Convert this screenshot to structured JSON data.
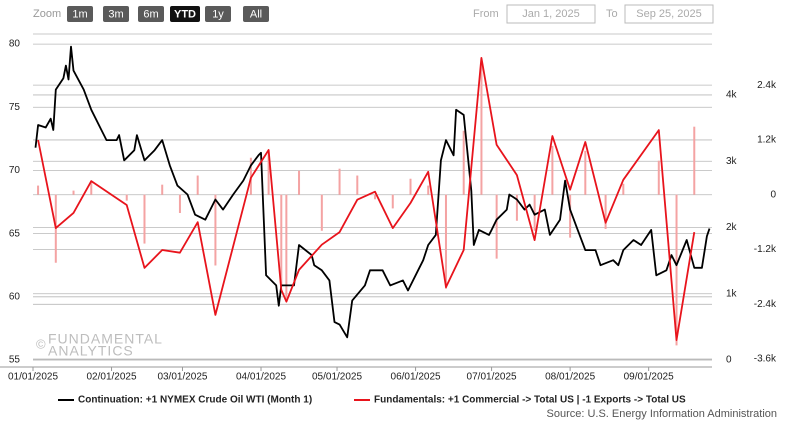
{
  "controls": {
    "zoom_label": "Zoom",
    "buttons": [
      "1m",
      "3m",
      "6m",
      "YTD",
      "1y",
      "All"
    ],
    "active_index": 3,
    "from_label": "From",
    "from": "Jan 1, 2025",
    "to_label": "To",
    "to": "Sep 25, 2025"
  },
  "watermark": {
    "symbol": "©",
    "lines": [
      "FUNDAMENTAL",
      "ANALYTICS"
    ]
  },
  "source": "Source: U.S. Energy Information Administration",
  "chart_data": {
    "type": "line",
    "grid": true,
    "legend": "bottom",
    "xlim": [
      "2025-01-01",
      "2025-09-26"
    ],
    "xticks": [
      {
        "value": "2025-01-01",
        "label": "01/01/2025"
      },
      {
        "value": "2025-02-01",
        "label": "02/01/2025"
      },
      {
        "value": "2025-03-01",
        "label": "03/01/2025"
      },
      {
        "value": "2025-04-01",
        "label": "04/01/2025"
      },
      {
        "value": "2025-05-01",
        "label": "05/01/2025"
      },
      {
        "value": "2025-06-01",
        "label": "06/01/2025"
      },
      {
        "value": "2025-07-01",
        "label": "07/01/2025"
      },
      {
        "value": "2025-08-01",
        "label": "08/01/2025"
      },
      {
        "value": "2025-09-01",
        "label": "09/01/2025"
      }
    ],
    "ylim": [
      55,
      80.8
    ],
    "yticks": [
      55,
      60,
      65,
      70,
      75,
      80
    ],
    "y2lim": [
      0,
      4920
    ],
    "y2ticks": [
      0,
      {
        "value": 1000,
        "label": "1k"
      },
      {
        "value": 2000,
        "label": "2k"
      },
      {
        "value": 3000,
        "label": "3k"
      },
      {
        "value": 4000,
        "label": "4k"
      }
    ],
    "y3lim": [
      -3620,
      3520
    ],
    "y3ticks": [
      {
        "value": -3600,
        "label": "-3.6k"
      },
      {
        "value": -2400,
        "label": "-2.4k"
      },
      {
        "value": -1200,
        "label": "-1.2k"
      },
      0,
      {
        "value": 1200,
        "label": "1.2k"
      },
      {
        "value": 2400,
        "label": "2.4k"
      }
    ],
    "series": [
      {
        "name": "Continuation: +1 NYMEX Crude Oil WTI (Month 1)",
        "color": "#000000",
        "x": [
          "2025-01-02",
          "2025-01-03",
          "2025-01-06",
          "2025-01-08",
          "2025-01-09",
          "2025-01-10",
          "2025-01-13",
          "2025-01-14",
          "2025-01-15",
          "2025-01-16",
          "2025-01-17",
          "2025-01-21",
          "2025-01-24",
          "2025-01-28",
          "2025-01-30",
          "2025-02-03",
          "2025-02-04",
          "2025-02-06",
          "2025-02-10",
          "2025-02-11",
          "2025-02-14",
          "2025-02-18",
          "2025-02-21",
          "2025-02-24",
          "2025-02-27",
          "2025-03-03",
          "2025-03-06",
          "2025-03-10",
          "2025-03-14",
          "2025-03-17",
          "2025-03-21",
          "2025-03-25",
          "2025-03-28",
          "2025-03-31",
          "2025-04-01",
          "2025-04-03",
          "2025-04-07",
          "2025-04-08",
          "2025-04-09",
          "2025-04-14",
          "2025-04-16",
          "2025-04-21",
          "2025-04-22",
          "2025-04-25",
          "2025-04-28",
          "2025-04-30",
          "2025-05-02",
          "2025-05-05",
          "2025-05-07",
          "2025-05-12",
          "2025-05-14",
          "2025-05-19",
          "2025-05-22",
          "2025-05-27",
          "2025-05-29",
          "2025-06-02",
          "2025-06-04",
          "2025-06-06",
          "2025-06-09",
          "2025-06-11",
          "2025-06-13",
          "2025-06-16",
          "2025-06-17",
          "2025-06-20",
          "2025-06-23",
          "2025-06-24",
          "2025-06-26",
          "2025-06-30",
          "2025-07-01",
          "2025-07-03",
          "2025-07-07",
          "2025-07-08",
          "2025-07-11",
          "2025-07-14",
          "2025-07-16",
          "2025-07-18",
          "2025-07-22",
          "2025-07-24",
          "2025-07-28",
          "2025-07-30",
          "2025-08-01",
          "2025-08-04",
          "2025-08-07",
          "2025-08-11",
          "2025-08-13",
          "2025-08-18",
          "2025-08-20",
          "2025-08-22",
          "2025-08-26",
          "2025-08-29",
          "2025-09-02",
          "2025-09-04",
          "2025-09-08",
          "2025-09-10",
          "2025-09-12",
          "2025-09-16",
          "2025-09-19",
          "2025-09-22",
          "2025-09-24",
          "2025-09-25"
        ],
        "values": [
          71.8,
          73.6,
          73.4,
          74.1,
          73.2,
          76.4,
          77.3,
          78.3,
          77.2,
          79.8,
          77.9,
          76.4,
          74.8,
          73.2,
          72.4,
          72.4,
          72.8,
          70.8,
          71.6,
          72.8,
          70.8,
          71.6,
          72.4,
          70.4,
          68.8,
          68.1,
          66.5,
          66.1,
          67.7,
          66.9,
          68.1,
          69.2,
          70.4,
          71.2,
          71.4,
          61.7,
          60.9,
          59.3,
          60.9,
          60.9,
          64.1,
          63.3,
          62.5,
          62.1,
          61.3,
          58.0,
          57.8,
          56.8,
          59.7,
          60.9,
          62.1,
          62.1,
          60.9,
          61.3,
          60.5,
          62.1,
          62.9,
          64.1,
          64.9,
          70.8,
          72.4,
          71.2,
          74.8,
          74.4,
          68.4,
          64.1,
          65.3,
          64.9,
          65.3,
          66.1,
          66.9,
          68.1,
          67.7,
          66.9,
          67.3,
          66.5,
          66.9,
          64.9,
          66.1,
          69.2,
          66.9,
          65.3,
          63.7,
          63.7,
          62.5,
          62.9,
          62.5,
          63.7,
          64.5,
          64.1,
          65.3,
          61.7,
          62.1,
          63.3,
          62.5,
          64.5,
          62.3,
          62.3,
          64.8,
          65.4
        ]
      },
      {
        "name": "Fundamentals: +1 Commercial -> Total US | -1 Exports -> Total US",
        "color": "#e8141c",
        "axis": "y2",
        "x": [
          "2025-01-03",
          "2025-01-10",
          "2025-01-17",
          "2025-01-24",
          "2025-02-07",
          "2025-02-14",
          "2025-02-21",
          "2025-02-28",
          "2025-03-07",
          "2025-03-14",
          "2025-03-28",
          "2025-04-04",
          "2025-04-09",
          "2025-04-11",
          "2025-04-16",
          "2025-04-25",
          "2025-05-02",
          "2025-05-09",
          "2025-05-16",
          "2025-05-23",
          "2025-05-30",
          "2025-06-06",
          "2025-06-13",
          "2025-06-20",
          "2025-06-27",
          "2025-07-03",
          "2025-07-11",
          "2025-07-18",
          "2025-07-25",
          "2025-08-01",
          "2025-08-07",
          "2025-08-15",
          "2025-08-22",
          "2025-09-05",
          "2025-09-12",
          "2025-09-19"
        ],
        "values": [
          3320,
          1990,
          2220,
          2700,
          2340,
          1390,
          1660,
          1620,
          2080,
          680,
          2750,
          3170,
          1060,
          880,
          1360,
          1740,
          1930,
          2420,
          2540,
          1990,
          2370,
          2840,
          1100,
          1660,
          4560,
          3250,
          2790,
          1810,
          3380,
          2570,
          3290,
          2070,
          2720,
          3470,
          300,
          1930
        ]
      },
      {
        "type": "bar",
        "color": "#f4a3a3",
        "axis": "y3",
        "x": [
          "2025-01-03",
          "2025-01-10",
          "2025-01-17",
          "2025-01-24",
          "2025-02-07",
          "2025-02-14",
          "2025-02-21",
          "2025-02-28",
          "2025-03-07",
          "2025-03-14",
          "2025-03-28",
          "2025-04-04",
          "2025-04-09",
          "2025-04-11",
          "2025-04-16",
          "2025-04-25",
          "2025-05-02",
          "2025-05-09",
          "2025-05-16",
          "2025-05-23",
          "2025-05-30",
          "2025-06-06",
          "2025-06-13",
          "2025-06-20",
          "2025-06-27",
          "2025-07-03",
          "2025-07-11",
          "2025-07-18",
          "2025-07-25",
          "2025-08-01",
          "2025-08-07",
          "2025-08-15",
          "2025-08-22",
          "2025-09-05",
          "2025-09-12",
          "2025-09-19"
        ],
        "values": [
          200,
          -1490,
          90,
          300,
          -130,
          -1070,
          220,
          -400,
          420,
          -1550,
          810,
          900,
          -2000,
          -2320,
          525,
          -790,
          570,
          420,
          -100,
          -300,
          350,
          200,
          -2060,
          1400,
          2850,
          -1400,
          -570,
          -790,
          1070,
          -940,
          960,
          -750,
          240,
          745,
          -3300,
          1490
        ]
      }
    ]
  }
}
